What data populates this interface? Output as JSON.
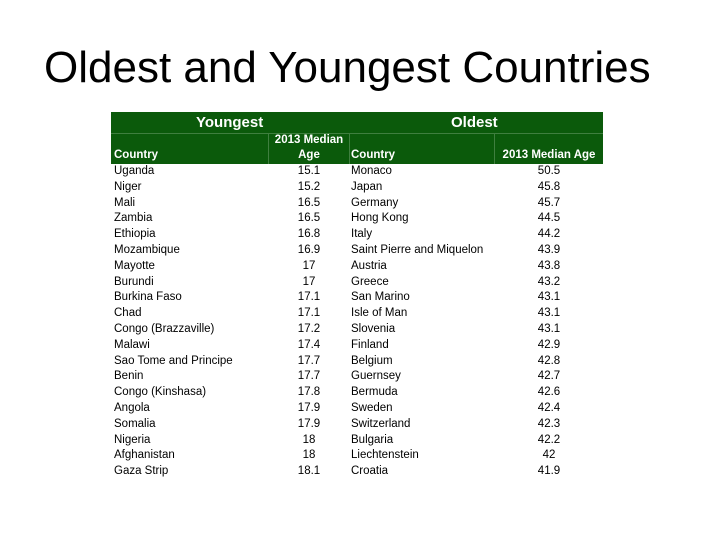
{
  "title": "Oldest and Youngest Countries",
  "table": {
    "group_headers": {
      "youngest": "Youngest",
      "oldest": "Oldest"
    },
    "columns": {
      "country_left": "Country",
      "median_left_line1": "2013 Median",
      "median_left_line2": "Age",
      "country_right": "Country",
      "median_right": "2013 Median Age"
    },
    "header_bg": "#0b5a0b",
    "rows": [
      {
        "young_country": "Uganda",
        "young_age": "15.1",
        "old_country": "Monaco",
        "old_age": "50.5"
      },
      {
        "young_country": "Niger",
        "young_age": "15.2",
        "old_country": "Japan",
        "old_age": "45.8"
      },
      {
        "young_country": "Mali",
        "young_age": "16.5",
        "old_country": "Germany",
        "old_age": "45.7"
      },
      {
        "young_country": "Zambia",
        "young_age": "16.5",
        "old_country": "Hong Kong",
        "old_age": "44.5"
      },
      {
        "young_country": "Ethiopia",
        "young_age": "16.8",
        "old_country": "Italy",
        "old_age": "44.2"
      },
      {
        "young_country": "Mozambique",
        "young_age": "16.9",
        "old_country": "Saint Pierre and Miquelon",
        "old_age": "43.9"
      },
      {
        "young_country": "Mayotte",
        "young_age": "17",
        "old_country": "Austria",
        "old_age": "43.8"
      },
      {
        "young_country": "Burundi",
        "young_age": "17",
        "old_country": "Greece",
        "old_age": "43.2"
      },
      {
        "young_country": "Burkina Faso",
        "young_age": "17.1",
        "old_country": "San Marino",
        "old_age": "43.1"
      },
      {
        "young_country": "Chad",
        "young_age": "17.1",
        "old_country": "Isle of Man",
        "old_age": "43.1"
      },
      {
        "young_country": "Congo (Brazzaville)",
        "young_age": "17.2",
        "old_country": "Slovenia",
        "old_age": "43.1"
      },
      {
        "young_country": "Malawi",
        "young_age": "17.4",
        "old_country": "Finland",
        "old_age": "42.9"
      },
      {
        "young_country": "Sao Tome and Principe",
        "young_age": "17.7",
        "old_country": "Belgium",
        "old_age": "42.8"
      },
      {
        "young_country": "Benin",
        "young_age": "17.7",
        "old_country": "Guernsey",
        "old_age": "42.7"
      },
      {
        "young_country": "Congo (Kinshasa)",
        "young_age": "17.8",
        "old_country": "Bermuda",
        "old_age": "42.6"
      },
      {
        "young_country": "Angola",
        "young_age": "17.9",
        "old_country": "Sweden",
        "old_age": "42.4"
      },
      {
        "young_country": "Somalia",
        "young_age": "17.9",
        "old_country": "Switzerland",
        "old_age": "42.3"
      },
      {
        "young_country": "Nigeria",
        "young_age": "18",
        "old_country": "Bulgaria",
        "old_age": "42.2"
      },
      {
        "young_country": "Afghanistan",
        "young_age": "18",
        "old_country": "Liechtenstein",
        "old_age": "42"
      },
      {
        "young_country": "Gaza Strip",
        "young_age": "18.1",
        "old_country": "Croatia",
        "old_age": "41.9"
      }
    ]
  }
}
